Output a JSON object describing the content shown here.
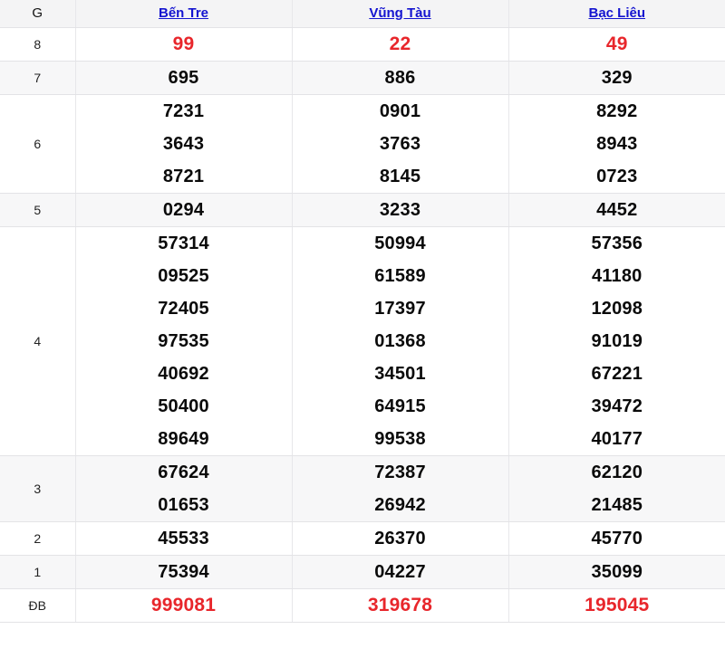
{
  "table": {
    "header": {
      "g_label": "G",
      "columns": [
        "Bến Tre",
        "Vũng Tàu",
        "Bạc Liêu"
      ]
    },
    "colors": {
      "red": "#e8262b",
      "link_blue": "#1414d0"
    },
    "rows": [
      {
        "label": "8",
        "highlight": "red",
        "shade": "white",
        "values": [
          [
            "99"
          ],
          [
            "22"
          ],
          [
            "49"
          ]
        ]
      },
      {
        "label": "7",
        "highlight": "none",
        "shade": "gray",
        "values": [
          [
            "695"
          ],
          [
            "886"
          ],
          [
            "329"
          ]
        ]
      },
      {
        "label": "6",
        "highlight": "none",
        "shade": "white",
        "values": [
          [
            "7231",
            "3643",
            "8721"
          ],
          [
            "0901",
            "3763",
            "8145"
          ],
          [
            "8292",
            "8943",
            "0723"
          ]
        ]
      },
      {
        "label": "5",
        "highlight": "none",
        "shade": "gray",
        "values": [
          [
            "0294"
          ],
          [
            "3233"
          ],
          [
            "4452"
          ]
        ]
      },
      {
        "label": "4",
        "highlight": "none",
        "shade": "white",
        "values": [
          [
            "57314",
            "09525",
            "72405",
            "97535",
            "40692",
            "50400",
            "89649"
          ],
          [
            "50994",
            "61589",
            "17397",
            "01368",
            "34501",
            "64915",
            "99538"
          ],
          [
            "57356",
            "41180",
            "12098",
            "91019",
            "67221",
            "39472",
            "40177"
          ]
        ]
      },
      {
        "label": "3",
        "highlight": "none",
        "shade": "gray",
        "values": [
          [
            "67624",
            "01653"
          ],
          [
            "72387",
            "26942"
          ],
          [
            "62120",
            "21485"
          ]
        ]
      },
      {
        "label": "2",
        "highlight": "none",
        "shade": "white",
        "values": [
          [
            "45533"
          ],
          [
            "26370"
          ],
          [
            "45770"
          ]
        ]
      },
      {
        "label": "1",
        "highlight": "none",
        "shade": "gray",
        "values": [
          [
            "75394"
          ],
          [
            "04227"
          ],
          [
            "35099"
          ]
        ]
      },
      {
        "label": "ĐB",
        "highlight": "red",
        "shade": "white",
        "values": [
          [
            "999081"
          ],
          [
            "319678"
          ],
          [
            "195045"
          ]
        ]
      }
    ]
  }
}
